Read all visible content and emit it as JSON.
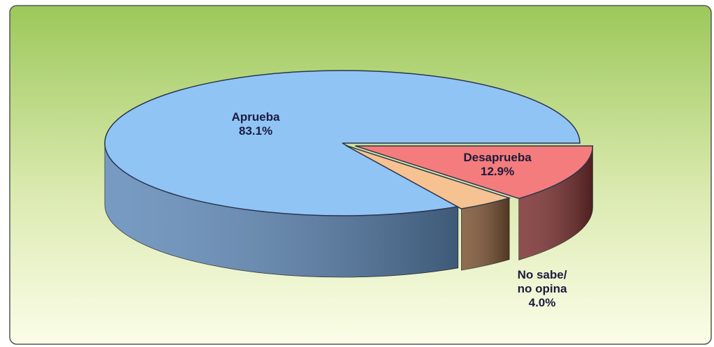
{
  "chart_data": {
    "type": "pie",
    "three_d": true,
    "categories": [
      "Desaprueba",
      "No sabe/\nno opina",
      "Aprueba"
    ],
    "values": [
      12.9,
      4.0,
      83.1
    ],
    "value_labels": [
      "12.9%",
      "4.0%",
      "83.1%"
    ],
    "colors": [
      "#f47c7c",
      "#f6c291",
      "#90c4f5"
    ],
    "side_colors": [
      "#7a2f2f",
      "#7b5232",
      "#5f89b8"
    ]
  }
}
